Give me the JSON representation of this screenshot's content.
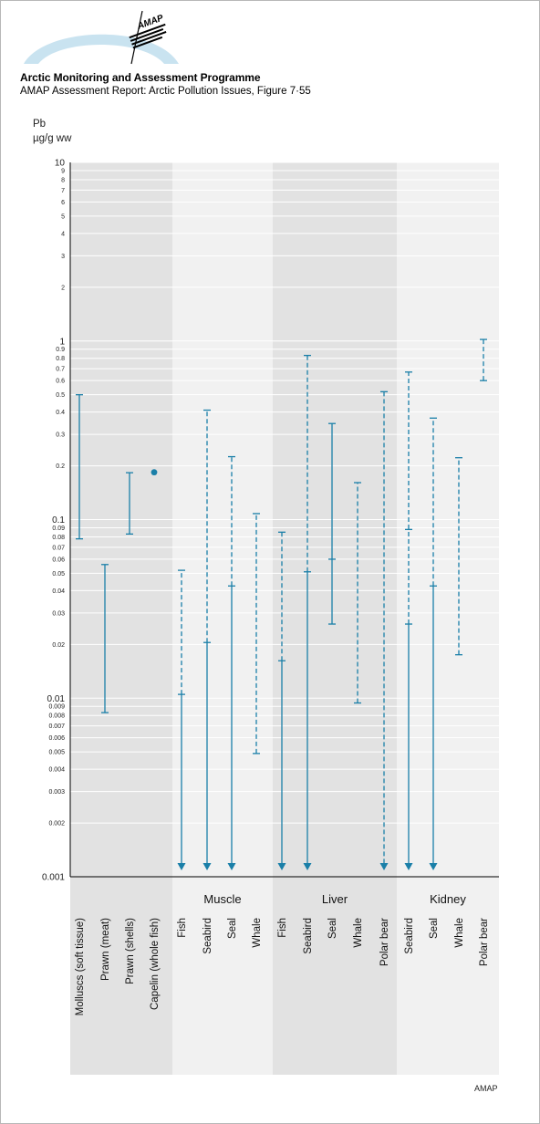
{
  "header": {
    "title": "Arctic Monitoring and Assessment Programme",
    "subtitle": "AMAP Assessment Report: Arctic Pollution Issues, Figure 7·55",
    "logo_text": "AMAP"
  },
  "footer": {
    "credit": "AMAP"
  },
  "colors": {
    "accent": "#1a7fa8",
    "shade_dark": "#e2e2e2",
    "shade_light": "#f1f1f1",
    "grid": "#ffffff"
  },
  "chart_data": {
    "type": "range",
    "ylabel": "Pb",
    "yunit": "µg/g ww",
    "yscale": "log",
    "ylim": [
      0.001,
      10
    ],
    "y_ticks": [
      {
        "v": 0.001,
        "label": "0.001",
        "major": true
      },
      {
        "v": 0.002,
        "label": "0.002"
      },
      {
        "v": 0.003,
        "label": "0.003"
      },
      {
        "v": 0.004,
        "label": "0.004"
      },
      {
        "v": 0.005,
        "label": "0.005"
      },
      {
        "v": 0.006,
        "label": "0.006"
      },
      {
        "v": 0.007,
        "label": "0.007"
      },
      {
        "v": 0.008,
        "label": "0.008"
      },
      {
        "v": 0.009,
        "label": "0.009"
      },
      {
        "v": 0.01,
        "label": "0.01",
        "major": true
      },
      {
        "v": 0.02,
        "label": "0.02"
      },
      {
        "v": 0.03,
        "label": "0.03"
      },
      {
        "v": 0.04,
        "label": "0.04"
      },
      {
        "v": 0.05,
        "label": "0.05"
      },
      {
        "v": 0.06,
        "label": "0.06"
      },
      {
        "v": 0.07,
        "label": "0.07"
      },
      {
        "v": 0.08,
        "label": "0.08"
      },
      {
        "v": 0.09,
        "label": "0.09"
      },
      {
        "v": 0.1,
        "label": "0.1",
        "major": true
      },
      {
        "v": 0.2,
        "label": "0.2"
      },
      {
        "v": 0.3,
        "label": "0.3"
      },
      {
        "v": 0.4,
        "label": "0.4"
      },
      {
        "v": 0.5,
        "label": "0.5"
      },
      {
        "v": 0.6,
        "label": "0.6"
      },
      {
        "v": 0.7,
        "label": "0.7"
      },
      {
        "v": 0.8,
        "label": "0.8"
      },
      {
        "v": 0.9,
        "label": "0.9"
      },
      {
        "v": 1,
        "label": "1",
        "major": true
      },
      {
        "v": 2,
        "label": "2"
      },
      {
        "v": 3,
        "label": "3"
      },
      {
        "v": 4,
        "label": "4"
      },
      {
        "v": 5,
        "label": "5"
      },
      {
        "v": 6,
        "label": "6"
      },
      {
        "v": 7,
        "label": "7"
      },
      {
        "v": 8,
        "label": "8"
      },
      {
        "v": 9,
        "label": "9"
      },
      {
        "v": 10,
        "label": "10",
        "major": true
      }
    ],
    "groups": [
      {
        "name": "",
        "shade": "dark",
        "items": [
          {
            "label": "Molluscs (soft tissue)",
            "min": 0.078,
            "max": 0.5,
            "style": "solid"
          },
          {
            "label": "Prawn (meat)",
            "min": 0.0083,
            "max": 0.056,
            "style": "solid"
          },
          {
            "label": "Prawn (shells)",
            "min": 0.083,
            "max": 0.183,
            "style": "solid"
          },
          {
            "label": "Capelin (whole fish)",
            "point": 0.184
          }
        ]
      },
      {
        "name": "Muscle",
        "shade": "light",
        "items": [
          {
            "label": "Fish",
            "low_mark": 0.0105,
            "high": 0.052,
            "below_detection": true
          },
          {
            "label": "Seabird",
            "low_mark": 0.0205,
            "high": 0.41,
            "below_detection": true
          },
          {
            "label": "Seal",
            "low_mark": 0.0425,
            "high": 0.225,
            "below_detection": true
          },
          {
            "label": "Whale",
            "min": 0.0049,
            "max": 0.108,
            "style": "dashed"
          }
        ]
      },
      {
        "name": "Liver",
        "shade": "dark",
        "items": [
          {
            "label": "Fish",
            "low_mark": 0.0162,
            "high": 0.085,
            "below_detection": true
          },
          {
            "label": "Seabird",
            "low_mark": 0.051,
            "high": 0.83,
            "below_detection": true
          },
          {
            "label": "Seal",
            "min": 0.026,
            "max": 0.345,
            "mid": 0.06,
            "style": "solid"
          },
          {
            "label": "Whale",
            "min": 0.0094,
            "max": 0.161,
            "style": "dashed"
          },
          {
            "label": "Polar bear",
            "high": 0.52,
            "below_detection": true
          }
        ]
      },
      {
        "name": "Kidney",
        "shade": "light",
        "items": [
          {
            "label": "Seabird",
            "low_mark": 0.026,
            "mid": 0.088,
            "high": 0.67,
            "below_detection": true
          },
          {
            "label": "Seal",
            "low_mark": 0.0425,
            "high": 0.37,
            "below_detection": true
          },
          {
            "label": "Whale",
            "min": 0.0175,
            "max": 0.222,
            "style": "dashed"
          },
          {
            "label": "Polar bear",
            "min": 0.6,
            "max": 1.02,
            "style": "dashed"
          }
        ]
      }
    ]
  }
}
